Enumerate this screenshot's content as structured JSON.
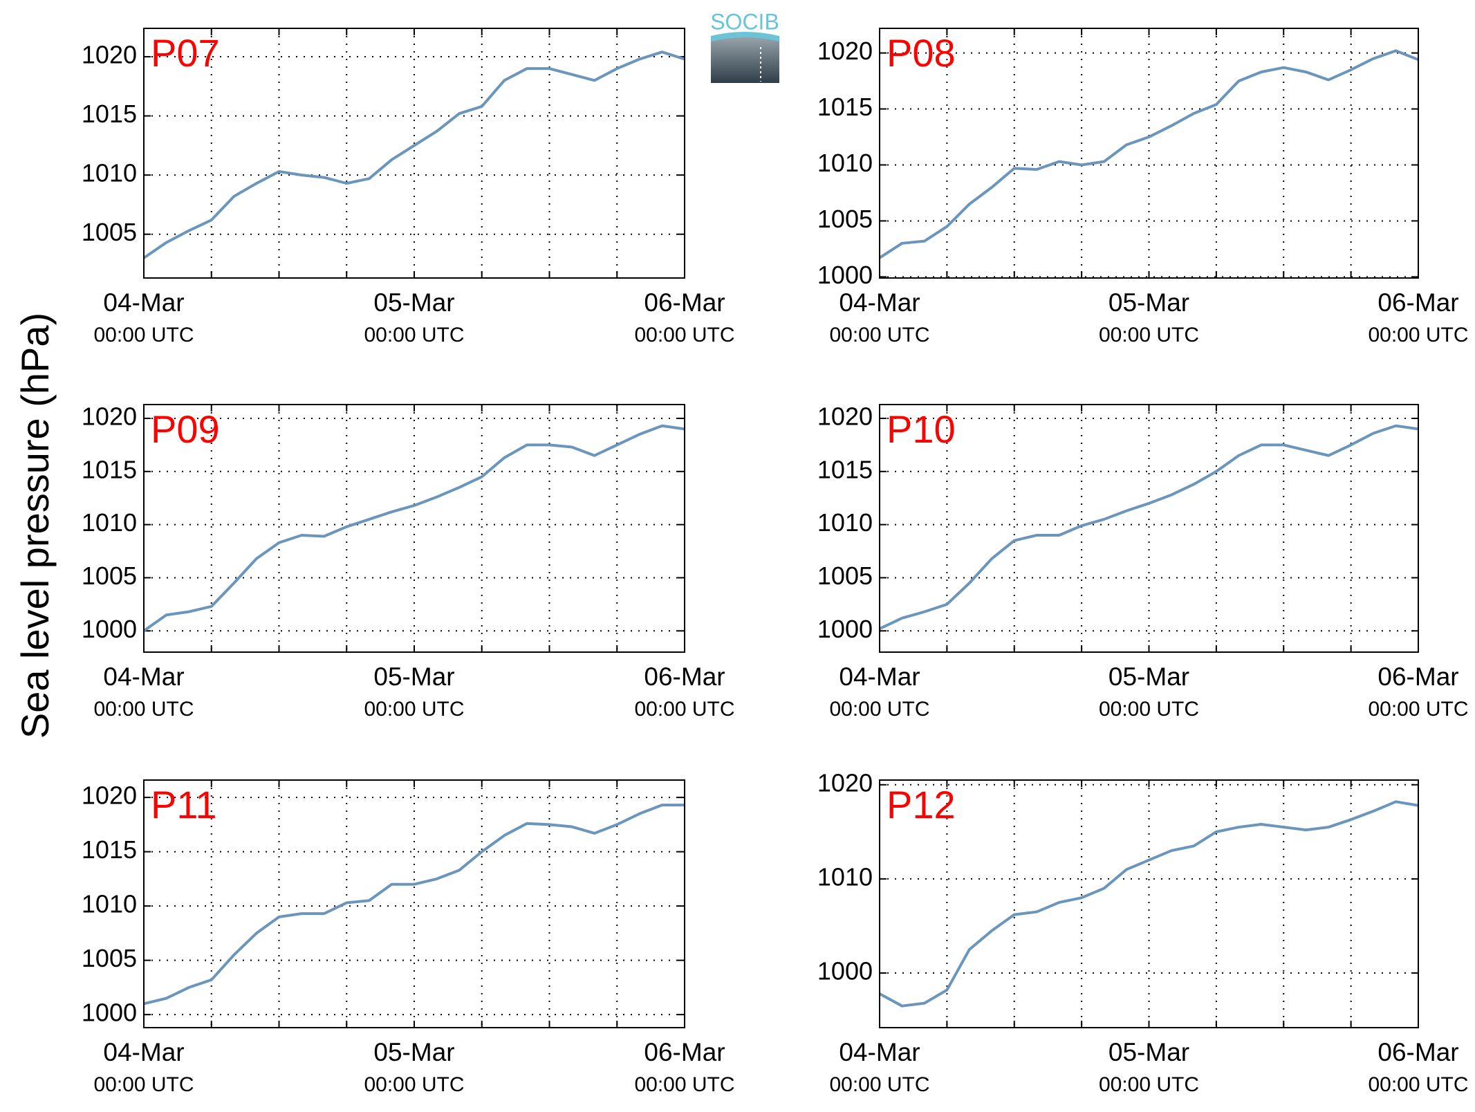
{
  "ylabel": "Sea level pressure (hPa)",
  "logo": "SOCIB",
  "chart_data": [
    {
      "type": "line",
      "title": "P07",
      "xlim": [
        0,
        48
      ],
      "ylim": [
        1001.3,
        1022.4
      ],
      "yticks": [
        1005,
        1010,
        1015,
        1020
      ],
      "grid": true,
      "xticks": [
        {
          "value": 0,
          "label": [
            "04-Mar",
            "00:00 UTC"
          ]
        },
        {
          "value": 24,
          "label": [
            "05-Mar",
            "00:00 UTC"
          ]
        },
        {
          "value": 48,
          "label": [
            "06-Mar",
            "00:00 UTC"
          ]
        }
      ],
      "xminorticks": [
        6,
        12,
        18,
        30,
        36,
        42
      ],
      "x": [
        0,
        2,
        4,
        6,
        8,
        10,
        12,
        14,
        16,
        18,
        20,
        22,
        24,
        26,
        28,
        30,
        32,
        34,
        36,
        38,
        40,
        42,
        44,
        46,
        48
      ],
      "series": [
        {
          "color": "#6b95bb",
          "values": [
            1003,
            1004.3,
            1005.3,
            1006.2,
            1008.2,
            1009.3,
            1010.3,
            1010,
            1009.8,
            1009.3,
            1009.7,
            1011.3,
            1012.5,
            1013.7,
            1015.2,
            1015.8,
            1018,
            1019,
            1019,
            1018.5,
            1018,
            1019,
            1019.8,
            1020.4,
            1019.8
          ]
        }
      ]
    },
    {
      "type": "line",
      "title": "P08",
      "xlim": [
        0,
        48
      ],
      "ylim": [
        999.9,
        1022.2
      ],
      "yticks": [
        1000,
        1005,
        1010,
        1015,
        1020
      ],
      "grid": true,
      "xticks": [
        {
          "value": 0,
          "label": [
            "04-Mar",
            "00:00 UTC"
          ]
        },
        {
          "value": 24,
          "label": [
            "05-Mar",
            "00:00 UTC"
          ]
        },
        {
          "value": 48,
          "label": [
            "06-Mar",
            "00:00 UTC"
          ]
        }
      ],
      "xminorticks": [
        6,
        12,
        18,
        30,
        36,
        42
      ],
      "x": [
        0,
        2,
        4,
        6,
        8,
        10,
        12,
        14,
        16,
        18,
        20,
        22,
        24,
        26,
        28,
        30,
        32,
        34,
        36,
        38,
        40,
        42,
        44,
        46,
        48
      ],
      "series": [
        {
          "color": "#6b95bb",
          "values": [
            1001.7,
            1003,
            1003.2,
            1004.5,
            1006.5,
            1008,
            1009.7,
            1009.6,
            1010.3,
            1010,
            1010.3,
            1011.8,
            1012.5,
            1013.5,
            1014.6,
            1015.4,
            1017.5,
            1018.3,
            1018.7,
            1018.3,
            1017.6,
            1018.5,
            1019.5,
            1020.2,
            1019.4
          ]
        }
      ]
    },
    {
      "type": "line",
      "title": "P09",
      "xlim": [
        0,
        48
      ],
      "ylim": [
        998.0,
        1021.3
      ],
      "yticks": [
        1000,
        1005,
        1010,
        1015,
        1020
      ],
      "grid": true,
      "xticks": [
        {
          "value": 0,
          "label": [
            "04-Mar",
            "00:00 UTC"
          ]
        },
        {
          "value": 24,
          "label": [
            "05-Mar",
            "00:00 UTC"
          ]
        },
        {
          "value": 48,
          "label": [
            "06-Mar",
            "00:00 UTC"
          ]
        }
      ],
      "xminorticks": [
        6,
        12,
        18,
        30,
        36,
        42
      ],
      "x": [
        0,
        2,
        4,
        6,
        8,
        10,
        12,
        14,
        16,
        18,
        20,
        22,
        24,
        26,
        28,
        30,
        32,
        34,
        36,
        38,
        40,
        42,
        44,
        46,
        48
      ],
      "series": [
        {
          "color": "#6b95bb",
          "values": [
            1000,
            1001.5,
            1001.8,
            1002.3,
            1004.5,
            1006.8,
            1008.3,
            1009,
            1008.9,
            1009.8,
            1010.5,
            1011.2,
            1011.8,
            1012.6,
            1013.5,
            1014.5,
            1016.3,
            1017.5,
            1017.5,
            1017.3,
            1016.5,
            1017.5,
            1018.5,
            1019.3,
            1019
          ]
        }
      ]
    },
    {
      "type": "line",
      "title": "P10",
      "xlim": [
        0,
        48
      ],
      "ylim": [
        998.0,
        1021.3
      ],
      "yticks": [
        1000,
        1005,
        1010,
        1015,
        1020
      ],
      "grid": true,
      "xticks": [
        {
          "value": 0,
          "label": [
            "04-Mar",
            "00:00 UTC"
          ]
        },
        {
          "value": 24,
          "label": [
            "05-Mar",
            "00:00 UTC"
          ]
        },
        {
          "value": 48,
          "label": [
            "06-Mar",
            "00:00 UTC"
          ]
        }
      ],
      "xminorticks": [
        6,
        12,
        18,
        30,
        36,
        42
      ],
      "x": [
        0,
        2,
        4,
        6,
        8,
        10,
        12,
        14,
        16,
        18,
        20,
        22,
        24,
        26,
        28,
        30,
        32,
        34,
        36,
        38,
        40,
        42,
        44,
        46,
        48
      ],
      "series": [
        {
          "color": "#6b95bb",
          "values": [
            1000.2,
            1001.2,
            1001.8,
            1002.5,
            1004.5,
            1006.8,
            1008.5,
            1009,
            1009,
            1009.9,
            1010.5,
            1011.3,
            1012,
            1012.8,
            1013.8,
            1015,
            1016.5,
            1017.5,
            1017.5,
            1017,
            1016.5,
            1017.5,
            1018.6,
            1019.3,
            1019
          ]
        }
      ]
    },
    {
      "type": "line",
      "title": "P11",
      "xlim": [
        0,
        48
      ],
      "ylim": [
        998.8,
        1021.6
      ],
      "yticks": [
        1000,
        1005,
        1010,
        1015,
        1020
      ],
      "grid": true,
      "xticks": [
        {
          "value": 0,
          "label": [
            "04-Mar",
            "00:00 UTC"
          ]
        },
        {
          "value": 24,
          "label": [
            "05-Mar",
            "00:00 UTC"
          ]
        },
        {
          "value": 48,
          "label": [
            "06-Mar",
            "00:00 UTC"
          ]
        }
      ],
      "xminorticks": [
        6,
        12,
        18,
        30,
        36,
        42
      ],
      "x": [
        0,
        2,
        4,
        6,
        8,
        10,
        12,
        14,
        16,
        18,
        20,
        22,
        24,
        26,
        28,
        30,
        32,
        34,
        36,
        38,
        40,
        42,
        44,
        46,
        48
      ],
      "series": [
        {
          "color": "#6b95bb",
          "values": [
            1001,
            1001.5,
            1002.5,
            1003.2,
            1005.5,
            1007.5,
            1009,
            1009.3,
            1009.3,
            1010.3,
            1010.5,
            1012,
            1012,
            1012.5,
            1013.3,
            1015,
            1016.5,
            1017.6,
            1017.5,
            1017.3,
            1016.7,
            1017.5,
            1018.5,
            1019.3,
            1019.3
          ]
        }
      ]
    },
    {
      "type": "line",
      "title": "P12",
      "xlim": [
        0,
        48
      ],
      "ylim": [
        994.2,
        1020.5
      ],
      "yticks": [
        1000,
        1010,
        1020
      ],
      "grid": true,
      "xticks": [
        {
          "value": 0,
          "label": [
            "04-Mar",
            "00:00 UTC"
          ]
        },
        {
          "value": 24,
          "label": [
            "05-Mar",
            "00:00 UTC"
          ]
        },
        {
          "value": 48,
          "label": [
            "06-Mar",
            "00:00 UTC"
          ]
        }
      ],
      "xminorticks": [
        6,
        12,
        18,
        30,
        36,
        42
      ],
      "x": [
        0,
        2,
        4,
        6,
        8,
        10,
        12,
        14,
        16,
        18,
        20,
        22,
        24,
        26,
        28,
        30,
        32,
        34,
        36,
        38,
        40,
        42,
        44,
        46,
        48
      ],
      "series": [
        {
          "color": "#6b95bb",
          "values": [
            997.8,
            996.5,
            996.8,
            998.2,
            1002.5,
            1004.5,
            1006.2,
            1006.5,
            1007.5,
            1008,
            1009,
            1011,
            1012,
            1013,
            1013.5,
            1015,
            1015.5,
            1015.8,
            1015.5,
            1015.2,
            1015.5,
            1016.3,
            1017.2,
            1018.2,
            1017.8
          ]
        }
      ]
    }
  ]
}
